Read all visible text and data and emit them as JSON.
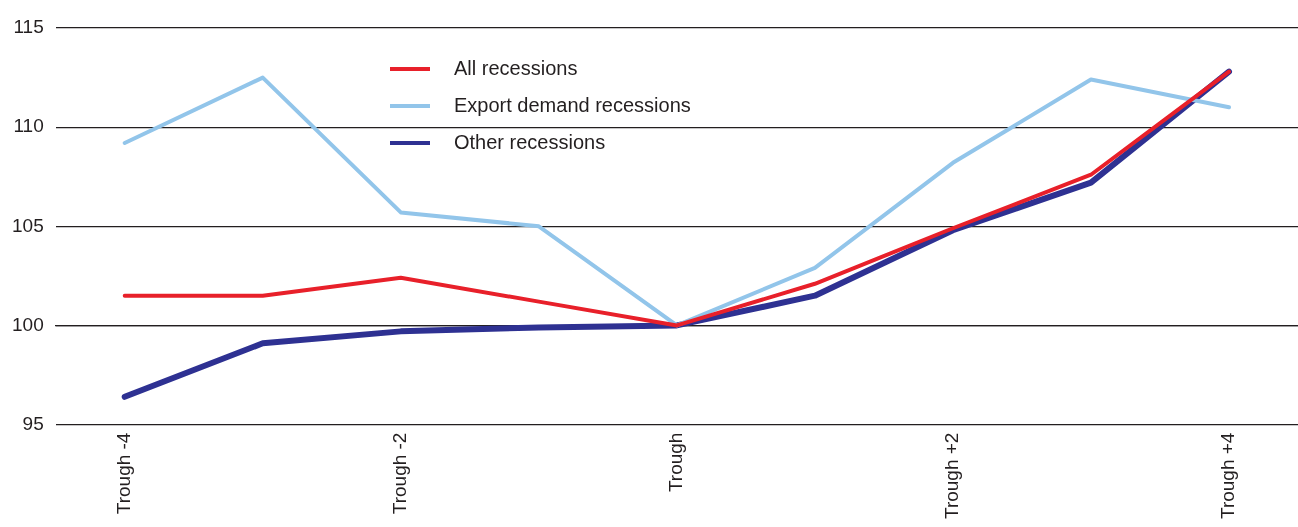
{
  "chart_data": {
    "type": "line",
    "categories": [
      "Trough -4",
      null,
      "Trough -2",
      null,
      "Trough",
      null,
      "Trough +2",
      null,
      "Trough +4"
    ],
    "series": [
      {
        "name": "All recessions",
        "color": "#e8202a",
        "values": [
          101.5,
          101.5,
          102.4,
          101.2,
          100,
          102.1,
          104.9,
          107.6,
          112.8
        ]
      },
      {
        "name": "Export demand recessions",
        "color": "#92c5ea",
        "values": [
          109.2,
          112.5,
          105.7,
          105.0,
          100,
          102.9,
          108.2,
          112.4,
          111.0
        ]
      },
      {
        "name": "Other recessions",
        "color": "#2e3192",
        "values": [
          96.4,
          99.1,
          99.7,
          99.9,
          100,
          101.5,
          104.8,
          107.2,
          112.8
        ]
      }
    ],
    "ylim": [
      95,
      115
    ],
    "yticks": [
      95,
      100,
      105,
      110,
      115
    ],
    "grid": "y",
    "legend": "top",
    "marker": "none",
    "line_style": "solid"
  }
}
